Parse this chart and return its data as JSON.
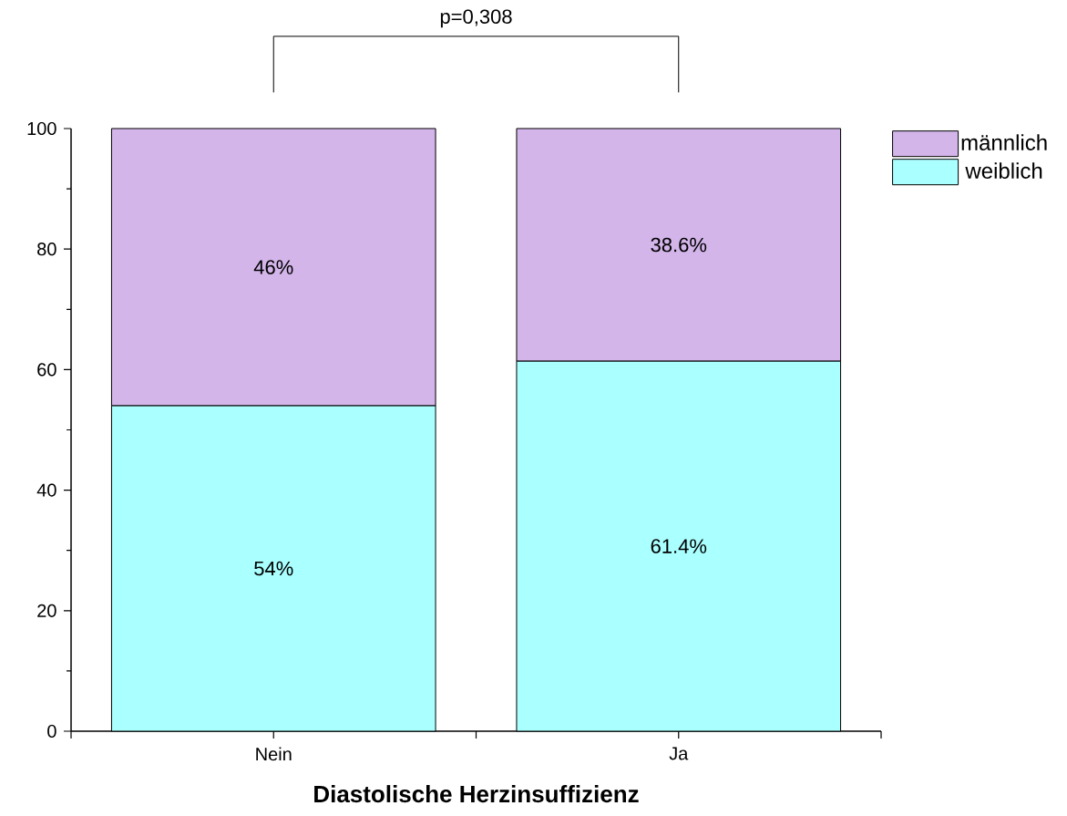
{
  "chart_data": {
    "type": "bar",
    "stacked": true,
    "xlabel": "**Diastolische Herzinsuffizienz**",
    "categories": [
      "Nein",
      "Ja"
    ],
    "series": [
      {
        "name": "weiblich",
        "color": "#aaffff",
        "values": [
          54,
          61.4
        ],
        "value_labels": [
          "54%",
          "61.4%"
        ]
      },
      {
        "name": "männlich",
        "color": "#d3b5ea",
        "values": [
          46,
          38.6
        ],
        "value_labels": [
          "46%",
          "38.6%"
        ]
      }
    ],
    "ylim": [
      0,
      100
    ],
    "yticks": [
      0,
      20,
      40,
      60,
      80,
      100
    ],
    "annotations": [
      "p=0,308"
    ],
    "legend": "right",
    "grid": false
  }
}
